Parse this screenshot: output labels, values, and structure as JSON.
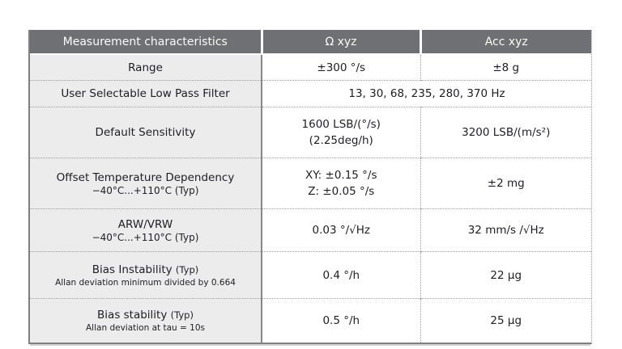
{
  "colors": {
    "header_bg": "#6f7073",
    "header_text": "#fbfbf6",
    "label_cell_bg": "#ececec",
    "body_text": "#1d1e24",
    "solid_border": "#7f8082",
    "dotted_border": "#9c9d9f"
  },
  "table": {
    "header": {
      "col1": "Measurement characteristics",
      "col2": "Ω xyz",
      "col3": "Acc xyz"
    },
    "rows": [
      {
        "label": "Range",
        "gyro": "±300 °/s",
        "acc": "±8 g"
      },
      {
        "label": "User Selectable Low Pass Filter",
        "merged": "13, 30, 68, 235, 280, 370 Hz"
      },
      {
        "label": "Default Sensitivity",
        "gyro_lines": [
          "1600 LSB/(°/s)",
          "(2.25deg/h)"
        ],
        "acc": "3200 LSB/(m/s²)"
      },
      {
        "label": "Offset Temperature Dependency",
        "sublabel": "−40°C...+110°C (Typ)",
        "gyro_lines": [
          "XY: ±0.15 °/s",
          "Z: ±0.05 °/s"
        ],
        "acc": "±2 mg"
      },
      {
        "label": "ARW/VRW",
        "sublabel": "−40°C...+110°C (Typ)",
        "gyro": "0.03 °/√Hz",
        "acc": "32 mm/s /√Hz"
      },
      {
        "label": "Bias Instability",
        "label_suffix": "(Typ)",
        "sublabel": "Allan deviation minimum divided by 0.664",
        "gyro": "0.4 °/h",
        "acc": "22 µg"
      },
      {
        "label": "Bias stability",
        "label_suffix": "(Typ)",
        "sublabel": "Allan deviation at tau = 10s",
        "gyro": "0.5 °/h",
        "acc": "25 µg"
      }
    ]
  }
}
